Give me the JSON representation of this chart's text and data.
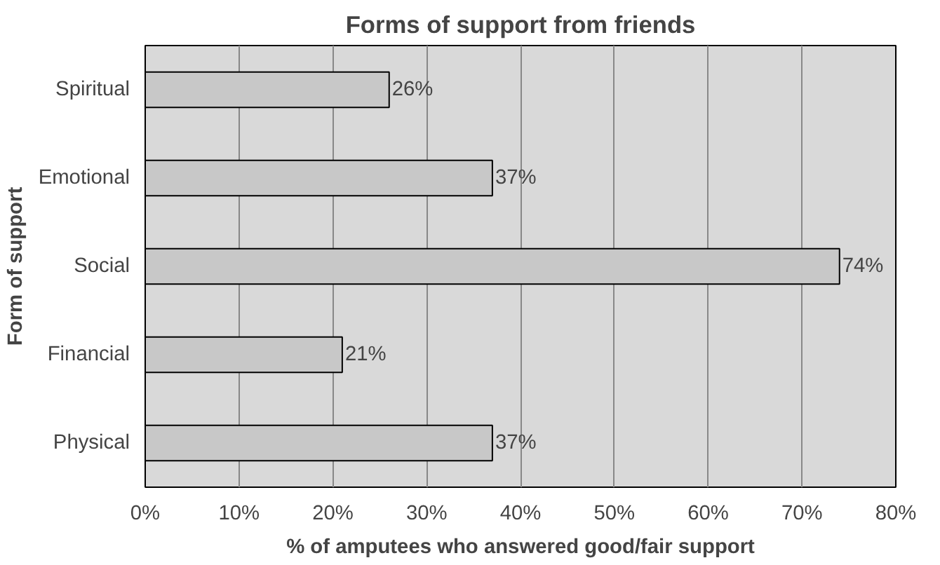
{
  "chart_data": {
    "type": "bar",
    "orientation": "horizontal",
    "title": "Forms of support from friends",
    "xlabel": "% of amputees who answered good/fair support",
    "ylabel": "Form of support",
    "categories": [
      "Spiritual",
      "Emotional",
      "Social",
      "Financial",
      "Physical"
    ],
    "values": [
      26,
      37,
      74,
      21,
      37
    ],
    "value_labels": [
      "26%",
      "37%",
      "74%",
      "21%",
      "37%"
    ],
    "color": "#c8c8c8",
    "xlim": [
      0,
      80
    ],
    "xticks": [
      {
        "value": 0,
        "label": "0%"
      },
      {
        "value": 10,
        "label": "10%"
      },
      {
        "value": 20,
        "label": "20%"
      },
      {
        "value": 30,
        "label": "30%"
      },
      {
        "value": 40,
        "label": "40%"
      },
      {
        "value": 50,
        "label": "50%"
      },
      {
        "value": 60,
        "label": "60%"
      },
      {
        "value": 70,
        "label": "70%"
      },
      {
        "value": 80,
        "label": "80%"
      }
    ],
    "grid": "x"
  }
}
